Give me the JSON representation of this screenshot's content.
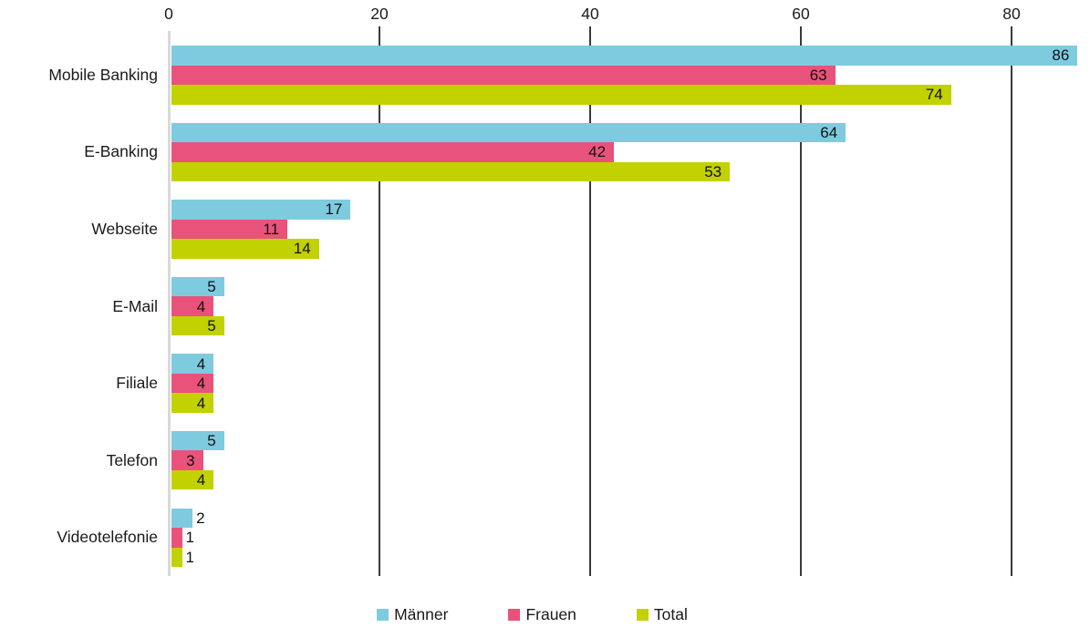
{
  "chart_data": {
    "type": "bar",
    "orientation": "horizontal",
    "title": "",
    "categories": [
      "Mobile Banking",
      "E-Banking",
      "Webseite",
      "E-Mail",
      "Filiale",
      "Telefon",
      "Videotelefonie"
    ],
    "series": [
      {
        "name": "Männer",
        "slug": "maenner",
        "color": "#7ECBDF",
        "values": [
          86,
          64,
          17,
          5,
          4,
          5,
          2
        ]
      },
      {
        "name": "Frauen",
        "slug": "frauen",
        "color": "#E9537B",
        "values": [
          63,
          42,
          11,
          4,
          4,
          3,
          1
        ]
      },
      {
        "name": "Total",
        "slug": "total",
        "color": "#C2D100",
        "values": [
          74,
          53,
          14,
          5,
          4,
          4,
          1
        ]
      }
    ],
    "x_axis": {
      "position": "top",
      "ticks": [
        0,
        20,
        40,
        60,
        80
      ],
      "min": 0,
      "max_visible": 87
    },
    "value_labels": {
      "shown": true,
      "inside_threshold": 3
    },
    "legend": {
      "position": "bottom",
      "entries": [
        "Männer",
        "Frauen",
        "Total"
      ]
    },
    "grid": true
  },
  "style": {
    "grid_color": "#3A3A3A",
    "zero_axis_color": "#D9D9D9",
    "text_color": "#1A1A1A",
    "background": "#FFFFFF"
  }
}
